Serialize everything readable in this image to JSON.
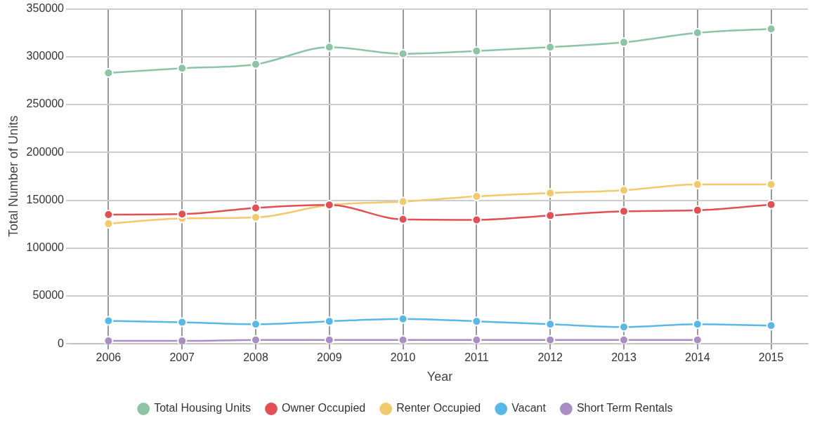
{
  "chart_data": {
    "type": "line",
    "xlabel": "Year",
    "ylabel": "Total Number of Units",
    "categories": [
      "2006",
      "2007",
      "2008",
      "2009",
      "2010",
      "2011",
      "2012",
      "2013",
      "2014",
      "2015"
    ],
    "series": [
      {
        "name": "Total Housing Units",
        "color": "#8cc5a5",
        "values": [
          283000,
          288000,
          292000,
          310000,
          303000,
          306000,
          310000,
          315000,
          325000,
          329000
        ]
      },
      {
        "name": "Owner Occupied",
        "color": "#e05055",
        "values": [
          135000,
          135500,
          142000,
          145000,
          130000,
          129500,
          134000,
          138500,
          139500,
          145500
        ]
      },
      {
        "name": "Renter Occupied",
        "color": "#f2c96b",
        "values": [
          125500,
          131000,
          132000,
          145000,
          148500,
          154000,
          157500,
          160500,
          166500,
          166500
        ]
      },
      {
        "name": "Vacant",
        "color": "#5ab8e6",
        "values": [
          24000,
          22500,
          20500,
          23500,
          26000,
          23500,
          20500,
          17500,
          20500,
          19000
        ]
      },
      {
        "name": "Short Term Rentals",
        "color": "#a98ec4",
        "values": [
          3000,
          3000,
          4000,
          4000,
          4000,
          4000,
          4000,
          4000,
          4000,
          null
        ]
      }
    ],
    "ylim": [
      0,
      350000
    ],
    "yticks": [
      0,
      50000,
      100000,
      150000,
      200000,
      250000,
      300000,
      350000
    ],
    "grid": true,
    "legend": "bottom",
    "marker": "circle",
    "line_style": "solid"
  }
}
